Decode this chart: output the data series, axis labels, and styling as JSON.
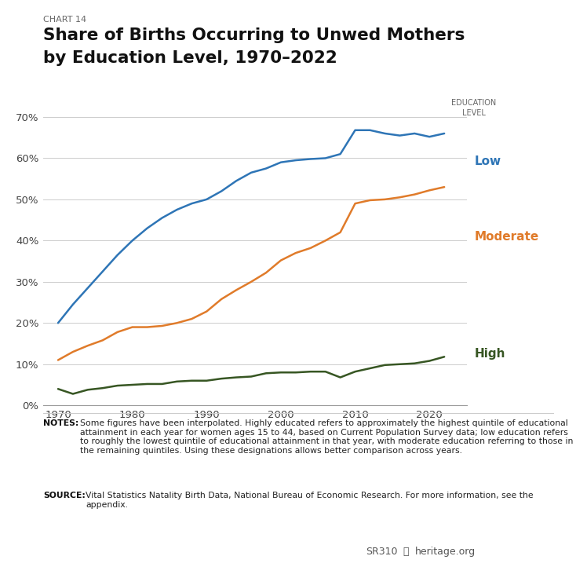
{
  "chart_label": "CHART 14",
  "title_line1": "Share of Births Occurring to Unwed Mothers",
  "title_line2": "by Education Level, 1970–2022",
  "legend_title": "EDUCATION\nLEVEL",
  "ylim": [
    0.0,
    0.75
  ],
  "yticks": [
    0.0,
    0.1,
    0.2,
    0.3,
    0.4,
    0.5,
    0.6,
    0.7
  ],
  "ytick_labels": [
    "0%",
    "10%",
    "20%",
    "30%",
    "40%",
    "50%",
    "60%",
    "70%"
  ],
  "xticks": [
    1970,
    1980,
    1990,
    2000,
    2010,
    2020
  ],
  "xlim": [
    1968,
    2025
  ],
  "background_color": "#ffffff",
  "series": {
    "Low": {
      "color": "#2E75B6",
      "label": "Low",
      "years": [
        1970,
        1972,
        1974,
        1976,
        1978,
        1980,
        1982,
        1984,
        1986,
        1988,
        1990,
        1992,
        1994,
        1996,
        1998,
        2000,
        2002,
        2004,
        2006,
        2008,
        2010,
        2012,
        2014,
        2016,
        2018,
        2020,
        2022
      ],
      "values": [
        0.2,
        0.245,
        0.285,
        0.325,
        0.365,
        0.4,
        0.43,
        0.455,
        0.475,
        0.49,
        0.5,
        0.52,
        0.545,
        0.565,
        0.575,
        0.59,
        0.595,
        0.598,
        0.6,
        0.61,
        0.668,
        0.668,
        0.66,
        0.655,
        0.66,
        0.652,
        0.66
      ]
    },
    "Moderate": {
      "color": "#E07B2A",
      "label": "Moderate",
      "years": [
        1970,
        1972,
        1974,
        1976,
        1978,
        1980,
        1982,
        1984,
        1986,
        1988,
        1990,
        1992,
        1994,
        1996,
        1998,
        2000,
        2002,
        2004,
        2006,
        2008,
        2010,
        2012,
        2014,
        2016,
        2018,
        2020,
        2022
      ],
      "values": [
        0.11,
        0.13,
        0.145,
        0.158,
        0.178,
        0.19,
        0.19,
        0.193,
        0.2,
        0.21,
        0.228,
        0.258,
        0.28,
        0.3,
        0.322,
        0.352,
        0.37,
        0.382,
        0.4,
        0.42,
        0.49,
        0.498,
        0.5,
        0.505,
        0.512,
        0.522,
        0.53
      ]
    },
    "High": {
      "color": "#375623",
      "label": "High",
      "years": [
        1970,
        1972,
        1974,
        1976,
        1978,
        1980,
        1982,
        1984,
        1986,
        1988,
        1990,
        1992,
        1994,
        1996,
        1998,
        2000,
        2002,
        2004,
        2006,
        2008,
        2010,
        2012,
        2014,
        2016,
        2018,
        2020,
        2022
      ],
      "values": [
        0.04,
        0.028,
        0.038,
        0.042,
        0.048,
        0.05,
        0.052,
        0.052,
        0.058,
        0.06,
        0.06,
        0.065,
        0.068,
        0.07,
        0.078,
        0.08,
        0.08,
        0.082,
        0.082,
        0.068,
        0.082,
        0.09,
        0.098,
        0.1,
        0.102,
        0.108,
        0.118
      ]
    }
  },
  "notes_normal": "Some figures have been interpolated. Highly educated refers to approximately the highest quintile of educational attainment in each year for women ages 15 to 44, based on Current Population Survey data; low education refers to roughly the lowest quintile of educational attainment in that year, with moderate education referring to those in the remaining quintiles. Using these designations allows better comparison across years.",
  "source_normal": "Vital Statistics Natality Birth Data, National Bureau of Economic Research. For more information, see the appendix.",
  "footer_left": "SR310",
  "footer_right": "heritage.org",
  "line_width": 1.8
}
